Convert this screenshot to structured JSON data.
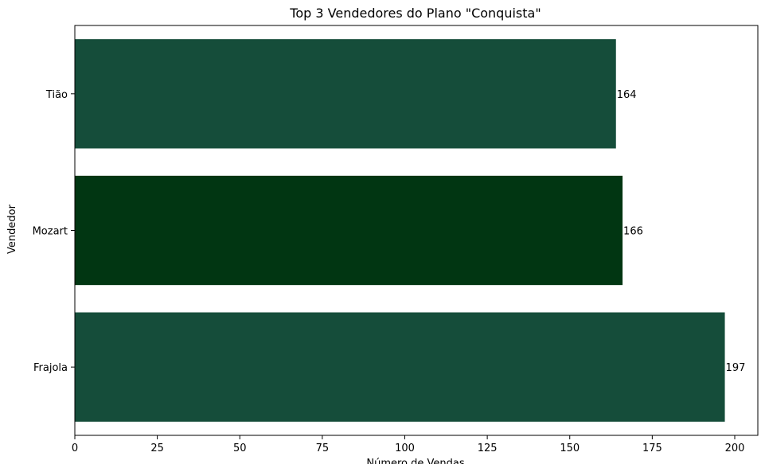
{
  "chart_data": {
    "type": "bar",
    "orientation": "horizontal",
    "title": "Top 3 Vendedores do Plano \"Conquista\"",
    "xlabel": "Número de Vendas",
    "ylabel": "Vendedor",
    "categories": [
      "Frajola",
      "Mozart",
      "Tião"
    ],
    "values": [
      197,
      166,
      164
    ],
    "xlim": [
      0,
      207
    ],
    "xticks": [
      0,
      25,
      50,
      75,
      100,
      125,
      150,
      175,
      200
    ],
    "grid": false,
    "bar_colors": [
      "#154d3a",
      "#013612",
      "#154d3a"
    ],
    "data_labels": true
  }
}
